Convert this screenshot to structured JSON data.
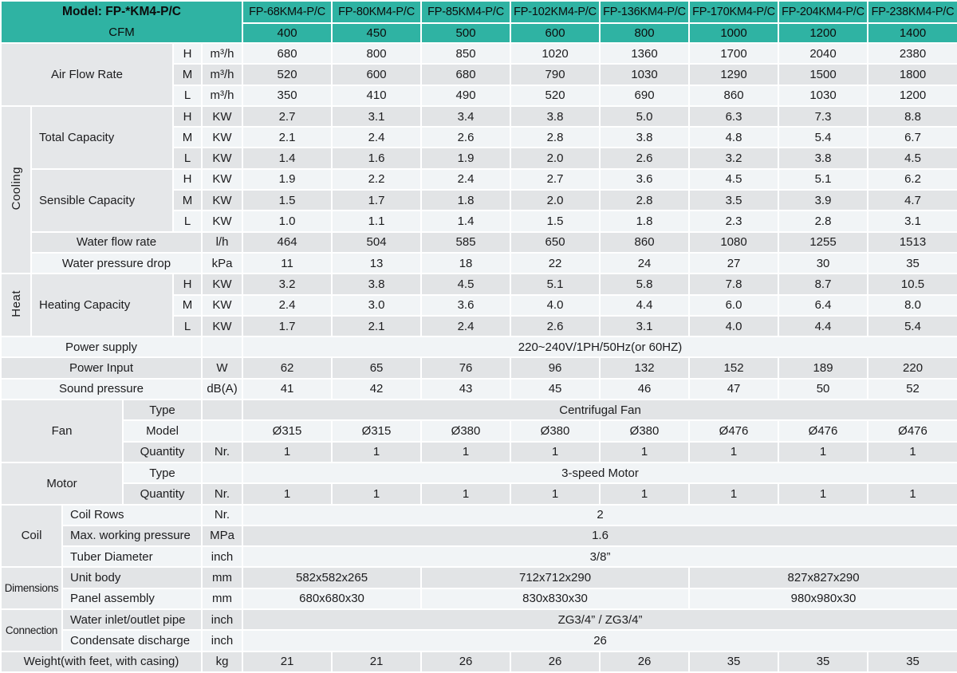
{
  "colors": {
    "header_teal": "#2fb3a3",
    "row_light": "#f1f4f6",
    "row_dark": "#e2e4e6",
    "merged_label_gray": "#e5e7e9",
    "divider_white": "#ffffff",
    "text": "#1c1c1e"
  },
  "header": {
    "model_label": "Model: FP-*KM4-P/C",
    "cfm_label": "CFM",
    "models": [
      "FP-68KM4-P/C",
      "FP-80KM4-P/C",
      "FP-85KM4-P/C",
      "FP-102KM4-P/C",
      "FP-136KM4-P/C",
      "FP-170KM4-P/C",
      "FP-204KM4-P/C",
      "FP-238KM4-P/C"
    ],
    "cfm_values": [
      "400",
      "450",
      "500",
      "600",
      "800",
      "1000",
      "1200",
      "1400"
    ]
  },
  "rows": [
    {
      "name": "air-flow-rate-h",
      "cells": [
        {
          "t": "Air Flow Rate",
          "cs": 4,
          "rs": 3,
          "n": "row-group-label-air-flow-rate"
        },
        {
          "t": "H",
          "n": "speed-label"
        },
        {
          "t": "m³/h",
          "n": "unit-label"
        },
        {
          "t": "680"
        },
        {
          "t": "800"
        },
        {
          "t": "850"
        },
        {
          "t": "1020"
        },
        {
          "t": "1360"
        },
        {
          "t": "1700"
        },
        {
          "t": "2040"
        },
        {
          "t": "2380"
        }
      ]
    },
    {
      "name": "air-flow-rate-m",
      "cells": [
        {
          "t": "M",
          "n": "speed-label"
        },
        {
          "t": "m³/h",
          "n": "unit-label"
        },
        {
          "t": "520"
        },
        {
          "t": "600"
        },
        {
          "t": "680"
        },
        {
          "t": "790"
        },
        {
          "t": "1030"
        },
        {
          "t": "1290"
        },
        {
          "t": "1500"
        },
        {
          "t": "1800"
        }
      ]
    },
    {
      "name": "air-flow-rate-l",
      "cells": [
        {
          "t": "L",
          "n": "speed-label"
        },
        {
          "t": "m³/h",
          "n": "unit-label"
        },
        {
          "t": "350"
        },
        {
          "t": "410"
        },
        {
          "t": "490"
        },
        {
          "t": "520"
        },
        {
          "t": "690"
        },
        {
          "t": "860"
        },
        {
          "t": "1030"
        },
        {
          "t": "1200"
        }
      ]
    },
    {
      "name": "total-capacity-h",
      "cells": [
        {
          "t": "Cooling",
          "rs": 8,
          "v": 1,
          "n": "section-label-cooling"
        },
        {
          "t": "Total Capacity",
          "cs": 3,
          "rs": 3,
          "la": 1,
          "n": "row-group-label-total-capacity"
        },
        {
          "t": "H",
          "n": "speed-label"
        },
        {
          "t": "KW",
          "n": "unit-label"
        },
        {
          "t": "2.7"
        },
        {
          "t": "3.1"
        },
        {
          "t": "3.4"
        },
        {
          "t": "3.8"
        },
        {
          "t": "5.0"
        },
        {
          "t": "6.3"
        },
        {
          "t": "7.3"
        },
        {
          "t": "8.8"
        }
      ]
    },
    {
      "name": "total-capacity-m",
      "cells": [
        {
          "t": "M",
          "n": "speed-label"
        },
        {
          "t": "KW",
          "n": "unit-label"
        },
        {
          "t": "2.1"
        },
        {
          "t": "2.4"
        },
        {
          "t": "2.6"
        },
        {
          "t": "2.8"
        },
        {
          "t": "3.8"
        },
        {
          "t": "4.8"
        },
        {
          "t": "5.4"
        },
        {
          "t": "6.7"
        }
      ]
    },
    {
      "name": "total-capacity-l",
      "cells": [
        {
          "t": "L",
          "n": "speed-label"
        },
        {
          "t": "KW",
          "n": "unit-label"
        },
        {
          "t": "1.4"
        },
        {
          "t": "1.6"
        },
        {
          "t": "1.9"
        },
        {
          "t": "2.0"
        },
        {
          "t": "2.6"
        },
        {
          "t": "3.2"
        },
        {
          "t": "3.8"
        },
        {
          "t": "4.5"
        }
      ]
    },
    {
      "name": "sensible-capacity-h",
      "cells": [
        {
          "t": "Sensible Capacity",
          "cs": 3,
          "rs": 3,
          "la": 1,
          "n": "row-group-label-sensible-capacity"
        },
        {
          "t": "H",
          "n": "speed-label"
        },
        {
          "t": "KW",
          "n": "unit-label"
        },
        {
          "t": "1.9"
        },
        {
          "t": "2.2"
        },
        {
          "t": "2.4"
        },
        {
          "t": "2.7"
        },
        {
          "t": "3.6"
        },
        {
          "t": "4.5"
        },
        {
          "t": "5.1"
        },
        {
          "t": "6.2"
        }
      ]
    },
    {
      "name": "sensible-capacity-m",
      "cells": [
        {
          "t": "M",
          "n": "speed-label"
        },
        {
          "t": "KW",
          "n": "unit-label"
        },
        {
          "t": "1.5"
        },
        {
          "t": "1.7"
        },
        {
          "t": "1.8"
        },
        {
          "t": "2.0"
        },
        {
          "t": "2.8"
        },
        {
          "t": "3.5"
        },
        {
          "t": "3.9"
        },
        {
          "t": "4.7"
        }
      ]
    },
    {
      "name": "sensible-capacity-l",
      "cells": [
        {
          "t": "L",
          "n": "speed-label"
        },
        {
          "t": "KW",
          "n": "unit-label"
        },
        {
          "t": "1.0"
        },
        {
          "t": "1.1"
        },
        {
          "t": "1.4"
        },
        {
          "t": "1.5"
        },
        {
          "t": "1.8"
        },
        {
          "t": "2.3"
        },
        {
          "t": "2.8"
        },
        {
          "t": "3.1"
        }
      ]
    },
    {
      "name": "water-flow-rate",
      "cells": [
        {
          "t": "Water flow rate",
          "cs": 4,
          "n": "row-label-water-flow-rate"
        },
        {
          "t": "l/h",
          "n": "unit-label"
        },
        {
          "t": "464"
        },
        {
          "t": "504"
        },
        {
          "t": "585"
        },
        {
          "t": "650"
        },
        {
          "t": "860"
        },
        {
          "t": "1080"
        },
        {
          "t": "1255"
        },
        {
          "t": "1513"
        }
      ]
    },
    {
      "name": "water-pressure-drop",
      "cells": [
        {
          "t": "Water pressure drop",
          "cs": 4,
          "n": "row-label-water-pressure-drop"
        },
        {
          "t": "kPa",
          "n": "unit-label"
        },
        {
          "t": "11"
        },
        {
          "t": "13"
        },
        {
          "t": "18"
        },
        {
          "t": "22"
        },
        {
          "t": "24"
        },
        {
          "t": "27"
        },
        {
          "t": "30"
        },
        {
          "t": "35"
        }
      ]
    },
    {
      "name": "heating-capacity-h",
      "cells": [
        {
          "t": "Heat",
          "rs": 3,
          "v": 1,
          "n": "section-label-heat"
        },
        {
          "t": "Heating Capacity",
          "cs": 3,
          "rs": 3,
          "la": 1,
          "n": "row-group-label-heating-capacity"
        },
        {
          "t": "H",
          "n": "speed-label"
        },
        {
          "t": "KW",
          "n": "unit-label"
        },
        {
          "t": "3.2"
        },
        {
          "t": "3.8"
        },
        {
          "t": "4.5"
        },
        {
          "t": "5.1"
        },
        {
          "t": "5.8"
        },
        {
          "t": "7.8"
        },
        {
          "t": "8.7"
        },
        {
          "t": "10.5"
        }
      ]
    },
    {
      "name": "heating-capacity-m",
      "cells": [
        {
          "t": "M",
          "n": "speed-label"
        },
        {
          "t": "KW",
          "n": "unit-label"
        },
        {
          "t": "2.4"
        },
        {
          "t": "3.0"
        },
        {
          "t": "3.6"
        },
        {
          "t": "4.0"
        },
        {
          "t": "4.4"
        },
        {
          "t": "6.0"
        },
        {
          "t": "6.4"
        },
        {
          "t": "8.0"
        }
      ]
    },
    {
      "name": "heating-capacity-l",
      "cells": [
        {
          "t": "L",
          "n": "speed-label"
        },
        {
          "t": "KW",
          "n": "unit-label"
        },
        {
          "t": "1.7"
        },
        {
          "t": "2.1"
        },
        {
          "t": "2.4"
        },
        {
          "t": "2.6"
        },
        {
          "t": "3.1"
        },
        {
          "t": "4.0"
        },
        {
          "t": "4.4"
        },
        {
          "t": "5.4"
        }
      ]
    },
    {
      "name": "power-supply",
      "cells": [
        {
          "t": "Power supply",
          "cs": 5,
          "n": "row-label-power-supply"
        },
        {
          "t": "",
          "n": "unit-label"
        },
        {
          "t": "220~240V/1PH/50Hz(or 60HZ)",
          "cs": 8,
          "n": "merged-value"
        }
      ]
    },
    {
      "name": "power-input",
      "cells": [
        {
          "t": "Power Input",
          "cs": 5,
          "n": "row-label-power-input"
        },
        {
          "t": "W",
          "n": "unit-label"
        },
        {
          "t": "62"
        },
        {
          "t": "65"
        },
        {
          "t": "76"
        },
        {
          "t": "96"
        },
        {
          "t": "132"
        },
        {
          "t": "152"
        },
        {
          "t": "189"
        },
        {
          "t": "220"
        }
      ]
    },
    {
      "name": "sound-pressure",
      "cells": [
        {
          "t": "Sound pressure",
          "cs": 5,
          "n": "row-label-sound-pressure"
        },
        {
          "t": "dB(A)",
          "n": "unit-label"
        },
        {
          "t": "41"
        },
        {
          "t": "42"
        },
        {
          "t": "43"
        },
        {
          "t": "45"
        },
        {
          "t": "46"
        },
        {
          "t": "47"
        },
        {
          "t": "50"
        },
        {
          "t": "52"
        }
      ]
    },
    {
      "name": "fan-type",
      "cells": [
        {
          "t": "Fan",
          "cs": 3,
          "rs": 3,
          "n": "section-label-fan"
        },
        {
          "t": "Type",
          "cs": 2,
          "n": "row-label-fan-type"
        },
        {
          "t": "",
          "n": "unit-label"
        },
        {
          "t": "Centrifugal Fan",
          "cs": 8,
          "n": "merged-value"
        }
      ]
    },
    {
      "name": "fan-model",
      "cells": [
        {
          "t": "Model",
          "cs": 2,
          "n": "row-label-fan-model"
        },
        {
          "t": "",
          "n": "unit-label"
        },
        {
          "t": "Ø315"
        },
        {
          "t": "Ø315"
        },
        {
          "t": "Ø380"
        },
        {
          "t": "Ø380"
        },
        {
          "t": "Ø380"
        },
        {
          "t": "Ø476"
        },
        {
          "t": "Ø476"
        },
        {
          "t": "Ø476"
        }
      ]
    },
    {
      "name": "fan-quantity",
      "cells": [
        {
          "t": "Quantity",
          "cs": 2,
          "n": "row-label-fan-quantity"
        },
        {
          "t": "Nr.",
          "n": "unit-label"
        },
        {
          "t": "1"
        },
        {
          "t": "1"
        },
        {
          "t": "1"
        },
        {
          "t": "1"
        },
        {
          "t": "1"
        },
        {
          "t": "1"
        },
        {
          "t": "1"
        },
        {
          "t": "1"
        }
      ]
    },
    {
      "name": "motor-type",
      "cells": [
        {
          "t": "Motor",
          "cs": 3,
          "rs": 2,
          "n": "section-label-motor"
        },
        {
          "t": "Type",
          "cs": 2,
          "n": "row-label-motor-type"
        },
        {
          "t": "",
          "n": "unit-label"
        },
        {
          "t": "3-speed Motor",
          "cs": 8,
          "n": "merged-value"
        }
      ]
    },
    {
      "name": "motor-quantity",
      "cells": [
        {
          "t": "Quantity",
          "cs": 2,
          "n": "row-label-motor-quantity"
        },
        {
          "t": "Nr.",
          "n": "unit-label"
        },
        {
          "t": "1"
        },
        {
          "t": "1"
        },
        {
          "t": "1"
        },
        {
          "t": "1"
        },
        {
          "t": "1"
        },
        {
          "t": "1"
        },
        {
          "t": "1"
        },
        {
          "t": "1"
        }
      ]
    },
    {
      "name": "coil-rows",
      "cells": [
        {
          "t": "Coil",
          "cs": 2,
          "rs": 3,
          "n": "section-label-coil"
        },
        {
          "t": "Coil Rows",
          "cs": 3,
          "la": 1,
          "n": "row-label-coil-rows"
        },
        {
          "t": "Nr.",
          "n": "unit-label"
        },
        {
          "t": "2",
          "cs": 8,
          "n": "merged-value"
        }
      ]
    },
    {
      "name": "max-working-pressure",
      "cells": [
        {
          "t": "Max. working pressure",
          "cs": 3,
          "la": 1,
          "n": "row-label-max-working-pressure"
        },
        {
          "t": "MPa",
          "n": "unit-label"
        },
        {
          "t": "1.6",
          "cs": 8,
          "n": "merged-value"
        }
      ]
    },
    {
      "name": "tuber-diameter",
      "cells": [
        {
          "t": "Tuber Diameter",
          "cs": 3,
          "la": 1,
          "n": "row-label-tuber-diameter"
        },
        {
          "t": "inch",
          "n": "unit-label"
        },
        {
          "t": "3/8”",
          "cs": 8,
          "n": "merged-value"
        }
      ]
    },
    {
      "name": "unit-body",
      "cells": [
        {
          "t": "Dimensions",
          "cs": 2,
          "rs": 2,
          "sm": 1,
          "n": "section-label-dimensions"
        },
        {
          "t": "Unit body",
          "cs": 3,
          "la": 1,
          "n": "row-label-unit-body"
        },
        {
          "t": "mm",
          "n": "unit-label"
        },
        {
          "t": "582x582x265",
          "cs": 2,
          "n": "merged-value"
        },
        {
          "t": "712x712x290",
          "cs": 3,
          "n": "merged-value"
        },
        {
          "t": "827x827x290",
          "cs": 3,
          "n": "merged-value"
        }
      ]
    },
    {
      "name": "panel-assembly",
      "cells": [
        {
          "t": "Panel assembly",
          "cs": 3,
          "la": 1,
          "n": "row-label-panel-assembly"
        },
        {
          "t": "mm",
          "n": "unit-label"
        },
        {
          "t": "680x680x30",
          "cs": 2,
          "n": "merged-value"
        },
        {
          "t": "830x830x30",
          "cs": 3,
          "n": "merged-value"
        },
        {
          "t": "980x980x30",
          "cs": 3,
          "n": "merged-value"
        }
      ]
    },
    {
      "name": "water-inlet-outlet-pipe",
      "cells": [
        {
          "t": "Connection",
          "cs": 2,
          "rs": 2,
          "sm": 1,
          "n": "section-label-connection"
        },
        {
          "t": "Water inlet/outlet pipe",
          "cs": 3,
          "la": 1,
          "n": "row-label-water-inlet-outlet-pipe"
        },
        {
          "t": "inch",
          "n": "unit-label"
        },
        {
          "t": "ZG3/4” / ZG3/4”",
          "cs": 8,
          "n": "merged-value"
        }
      ]
    },
    {
      "name": "condensate-discharge",
      "cells": [
        {
          "t": "Condensate discharge",
          "cs": 3,
          "la": 1,
          "n": "row-label-condensate-discharge"
        },
        {
          "t": "inch",
          "n": "unit-label"
        },
        {
          "t": "26",
          "cs": 8,
          "n": "merged-value"
        }
      ]
    },
    {
      "name": "weight",
      "cells": [
        {
          "t": "Weight(with feet, with casing)",
          "cs": 5,
          "n": "row-label-weight"
        },
        {
          "t": "kg",
          "n": "unit-label"
        },
        {
          "t": "21"
        },
        {
          "t": "21"
        },
        {
          "t": "26"
        },
        {
          "t": "26"
        },
        {
          "t": "26"
        },
        {
          "t": "35"
        },
        {
          "t": "35"
        },
        {
          "t": "35"
        }
      ]
    }
  ]
}
